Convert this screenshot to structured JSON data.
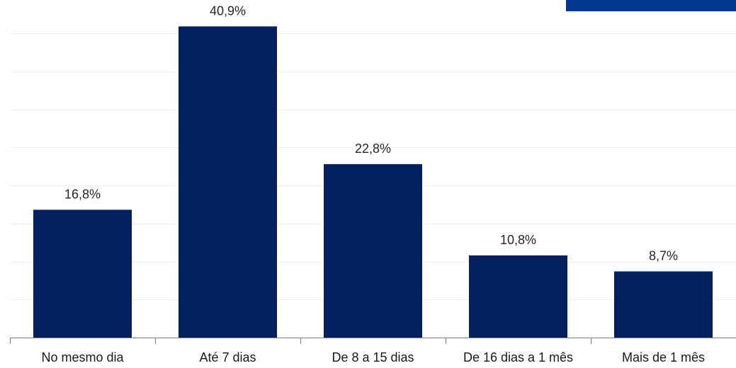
{
  "colors": {
    "bar": "#03205e",
    "accent": "#003a8c",
    "grid": "#f0f0f0",
    "axis": "#7f7f7f"
  },
  "chart_data": {
    "type": "bar",
    "title": "",
    "xlabel": "",
    "ylabel": "",
    "ylim": [
      0,
      45
    ],
    "grid": true,
    "legend": "none",
    "categories": [
      "No mesmo dia",
      "Até 7 dias",
      "De 8 a 15 dias",
      "De 16 dias a 1 mês",
      "Mais de 1 mês"
    ],
    "values": [
      16.8,
      40.9,
      22.8,
      10.8,
      8.7
    ],
    "value_labels": [
      "16,8%",
      "40,9%",
      "22,8%",
      "10,8%",
      "8,7%"
    ]
  }
}
